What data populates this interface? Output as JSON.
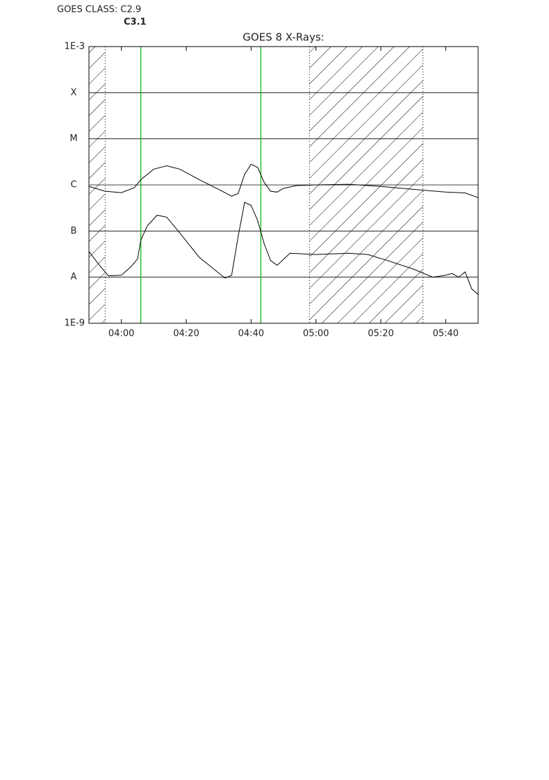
{
  "chart_data": {
    "type": "line",
    "title": "GOES 8 X-Rays:",
    "annotations": [
      "GOES CLASS: C2.9",
      "C3.1"
    ],
    "ylog": true,
    "grid": true,
    "ylim": [
      1e-09,
      0.001
    ],
    "yticks": [
      {
        "value": 1e-09,
        "label": "1E-9"
      },
      {
        "value": 1e-08,
        "label": "A"
      },
      {
        "value": 1e-07,
        "label": "B"
      },
      {
        "value": 1e-06,
        "label": "C"
      },
      {
        "value": 1e-05,
        "label": "M"
      },
      {
        "value": 0.0001,
        "label": "X"
      },
      {
        "value": 0.001,
        "label": "1E-3"
      }
    ],
    "xlim": [
      "03:50",
      "05:50"
    ],
    "xticks": [
      "04:00",
      "04:20",
      "04:40",
      "05:00",
      "05:20",
      "05:40"
    ],
    "shaded": [
      [
        "03:50",
        "03:55"
      ],
      [
        "04:58",
        "05:33"
      ]
    ],
    "vlines": {
      "color": "#00b000",
      "x": [
        "04:06",
        "04:43"
      ]
    },
    "series": [
      {
        "color": "#000000",
        "x": [
          "03:50",
          "03:55",
          "04:00",
          "04:04",
          "04:06",
          "04:10",
          "04:14",
          "04:18",
          "04:24",
          "04:30",
          "04:34",
          "04:36",
          "04:38",
          "04:40",
          "04:42",
          "04:44",
          "04:46",
          "04:48",
          "04:50",
          "04:54",
          "05:00",
          "05:10",
          "05:20",
          "05:30",
          "05:40",
          "05:46",
          "05:50"
        ],
        "values": [
          9.3e-07,
          7.3e-07,
          6.8e-07,
          8.7e-07,
          1.3e-06,
          2.2e-06,
          2.6e-06,
          2.2e-06,
          1.3e-06,
          8e-07,
          5.7e-07,
          6.5e-07,
          1.7e-06,
          2.8e-06,
          2.4e-06,
          1.15e-06,
          7.3e-07,
          7e-07,
          8.4e-07,
          9.7e-07,
          1e-06,
          1.03e-06,
          9.3e-07,
          8e-07,
          7e-07,
          6.7e-07,
          5.3e-07
        ]
      },
      {
        "color": "#000000",
        "x": [
          "03:50",
          "03:53",
          "03:56",
          "04:00",
          "04:03",
          "04:05",
          "04:06",
          "04:08",
          "04:11",
          "04:14",
          "04:18",
          "04:24",
          "04:28",
          "04:32",
          "04:34",
          "04:36",
          "04:38",
          "04:40",
          "04:42",
          "04:44",
          "04:46",
          "04:48",
          "04:52",
          "05:00",
          "05:10",
          "05:16",
          "05:22",
          "05:30",
          "05:36",
          "05:40",
          "05:42",
          "05:44",
          "05:46",
          "05:48",
          "05:50"
        ],
        "values": [
          3.6e-08,
          1.9e-08,
          1.07e-08,
          1.1e-08,
          1.7e-08,
          2.5e-08,
          6.4e-08,
          1.3e-07,
          2.2e-07,
          2e-07,
          9.1e-08,
          2.7e-08,
          1.6e-08,
          9.5e-09,
          1.1e-08,
          7.6e-08,
          4.2e-07,
          3.6e-07,
          1.7e-07,
          5.4e-08,
          2.3e-08,
          1.8e-08,
          3.3e-08,
          3.1e-08,
          3.3e-08,
          3.1e-08,
          2.3e-08,
          1.5e-08,
          1e-08,
          1.1e-08,
          1.2e-08,
          1e-08,
          1.3e-08,
          5.6e-09,
          4.2e-09
        ]
      }
    ]
  }
}
